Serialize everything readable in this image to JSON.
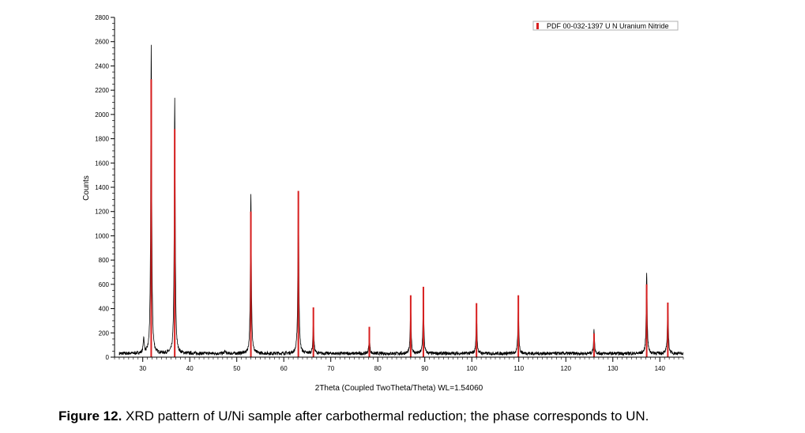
{
  "chart_data": {
    "type": "line",
    "title": "",
    "xlabel": "2Theta (Coupled TwoTheta/Theta) WL=1.54060",
    "ylabel": "Counts",
    "xlim": [
      24,
      145
    ],
    "ylim": [
      0,
      2800
    ],
    "x_ticks": [
      30,
      40,
      50,
      60,
      70,
      80,
      90,
      100,
      110,
      120,
      130,
      140
    ],
    "y_ticks": [
      0,
      200,
      400,
      600,
      800,
      1000,
      1200,
      1400,
      1600,
      1800,
      2000,
      2200,
      2400,
      2600,
      2800
    ],
    "x_tick_labels": [
      "30",
      "40",
      "50",
      "60",
      "70",
      "80",
      "90",
      "100",
      "110",
      "120",
      "130",
      "140"
    ],
    "y_tick_labels": [
      "0",
      "200",
      "400",
      "600",
      "800",
      "1000",
      "1200",
      "1400",
      "1600",
      "1800",
      "2000",
      "2200",
      "2400",
      "2600",
      "2800"
    ],
    "grid": false,
    "legend_position": "top-right",
    "series": [
      {
        "name": "",
        "kind": "measured-pattern",
        "color": "#000000",
        "x_range": [
          25,
          145
        ],
        "baseline": 30,
        "peaks": [
          {
            "x": 30.2,
            "y": 160
          },
          {
            "x": 31.8,
            "y": 2560
          },
          {
            "x": 36.8,
            "y": 2130
          },
          {
            "x": 47.5,
            "y": 50
          },
          {
            "x": 53.0,
            "y": 1350
          },
          {
            "x": 63.1,
            "y": 1390
          },
          {
            "x": 66.3,
            "y": 300
          },
          {
            "x": 78.2,
            "y": 180
          },
          {
            "x": 87.0,
            "y": 420
          },
          {
            "x": 89.7,
            "y": 480
          },
          {
            "x": 101.0,
            "y": 360
          },
          {
            "x": 109.9,
            "y": 420
          },
          {
            "x": 126.0,
            "y": 220
          },
          {
            "x": 137.2,
            "y": 700
          },
          {
            "x": 141.7,
            "y": 450
          }
        ]
      },
      {
        "name": "PDF 00-032-1397 U N Uranium Nitride",
        "kind": "reference-sticks",
        "color": "#d81f1f",
        "x": [
          31.8,
          36.8,
          53.0,
          63.1,
          66.3,
          78.2,
          87.0,
          89.7,
          101.0,
          109.9,
          126.0,
          137.2,
          141.7
        ],
        "y": [
          2290,
          1880,
          1200,
          1370,
          410,
          250,
          510,
          580,
          445,
          510,
          195,
          600,
          450
        ]
      }
    ]
  },
  "legend": {
    "label": "PDF 00-032-1397 U N Uranium Nitride",
    "swatch_color": "#d81f1f"
  },
  "caption": {
    "figure_number": "Figure 12.",
    "text": " XRD pattern of U/Ni sample after carbothermal reduction; the phase corresponds to UN."
  }
}
